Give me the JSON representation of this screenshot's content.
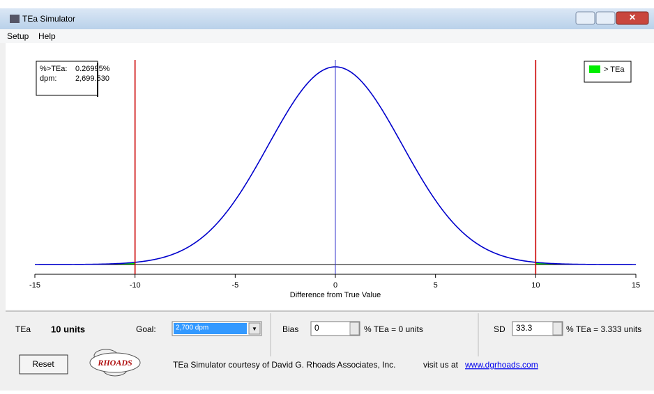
{
  "window": {
    "title": "TEa Simulator",
    "menu": [
      "Setup",
      "Help"
    ]
  },
  "chart_data": {
    "type": "line",
    "xlabel": "Difference from True Value",
    "xlim": [
      -15,
      15
    ],
    "xticks": [
      -15,
      -10,
      -5,
      0,
      5,
      10,
      15
    ],
    "limits": [
      -10,
      10
    ],
    "mean": 0,
    "sd": 3.333,
    "curve_color": "#0000cc",
    "limit_color": "#cc0000",
    "center_color": "#3333cc",
    "legend": {
      "label": "> TEa",
      "color": "#00ee00"
    },
    "info": {
      "pct_label": "%>TEa:",
      "pct": "0.26995%",
      "dpm_label": "dpm:",
      "dpm": "2,699.530"
    }
  },
  "controls": {
    "tea_label": "TEa",
    "tea_value": "10 units",
    "goal_label": "Goal:",
    "goal_value": "2,700 dpm",
    "bias_label": "Bias",
    "bias_value": "0",
    "bias_units": "% TEa = 0 units",
    "sd_label": "SD",
    "sd_value": "33.3",
    "sd_units": "% TEa = 3.333 units",
    "reset": "Reset"
  },
  "footer": {
    "logo": "RHOADS",
    "credit": "TEa Simulator courtesy of David G. Rhoads Associates, Inc.",
    "visit": "visit us at",
    "link": "www.dgrhoads.com"
  }
}
